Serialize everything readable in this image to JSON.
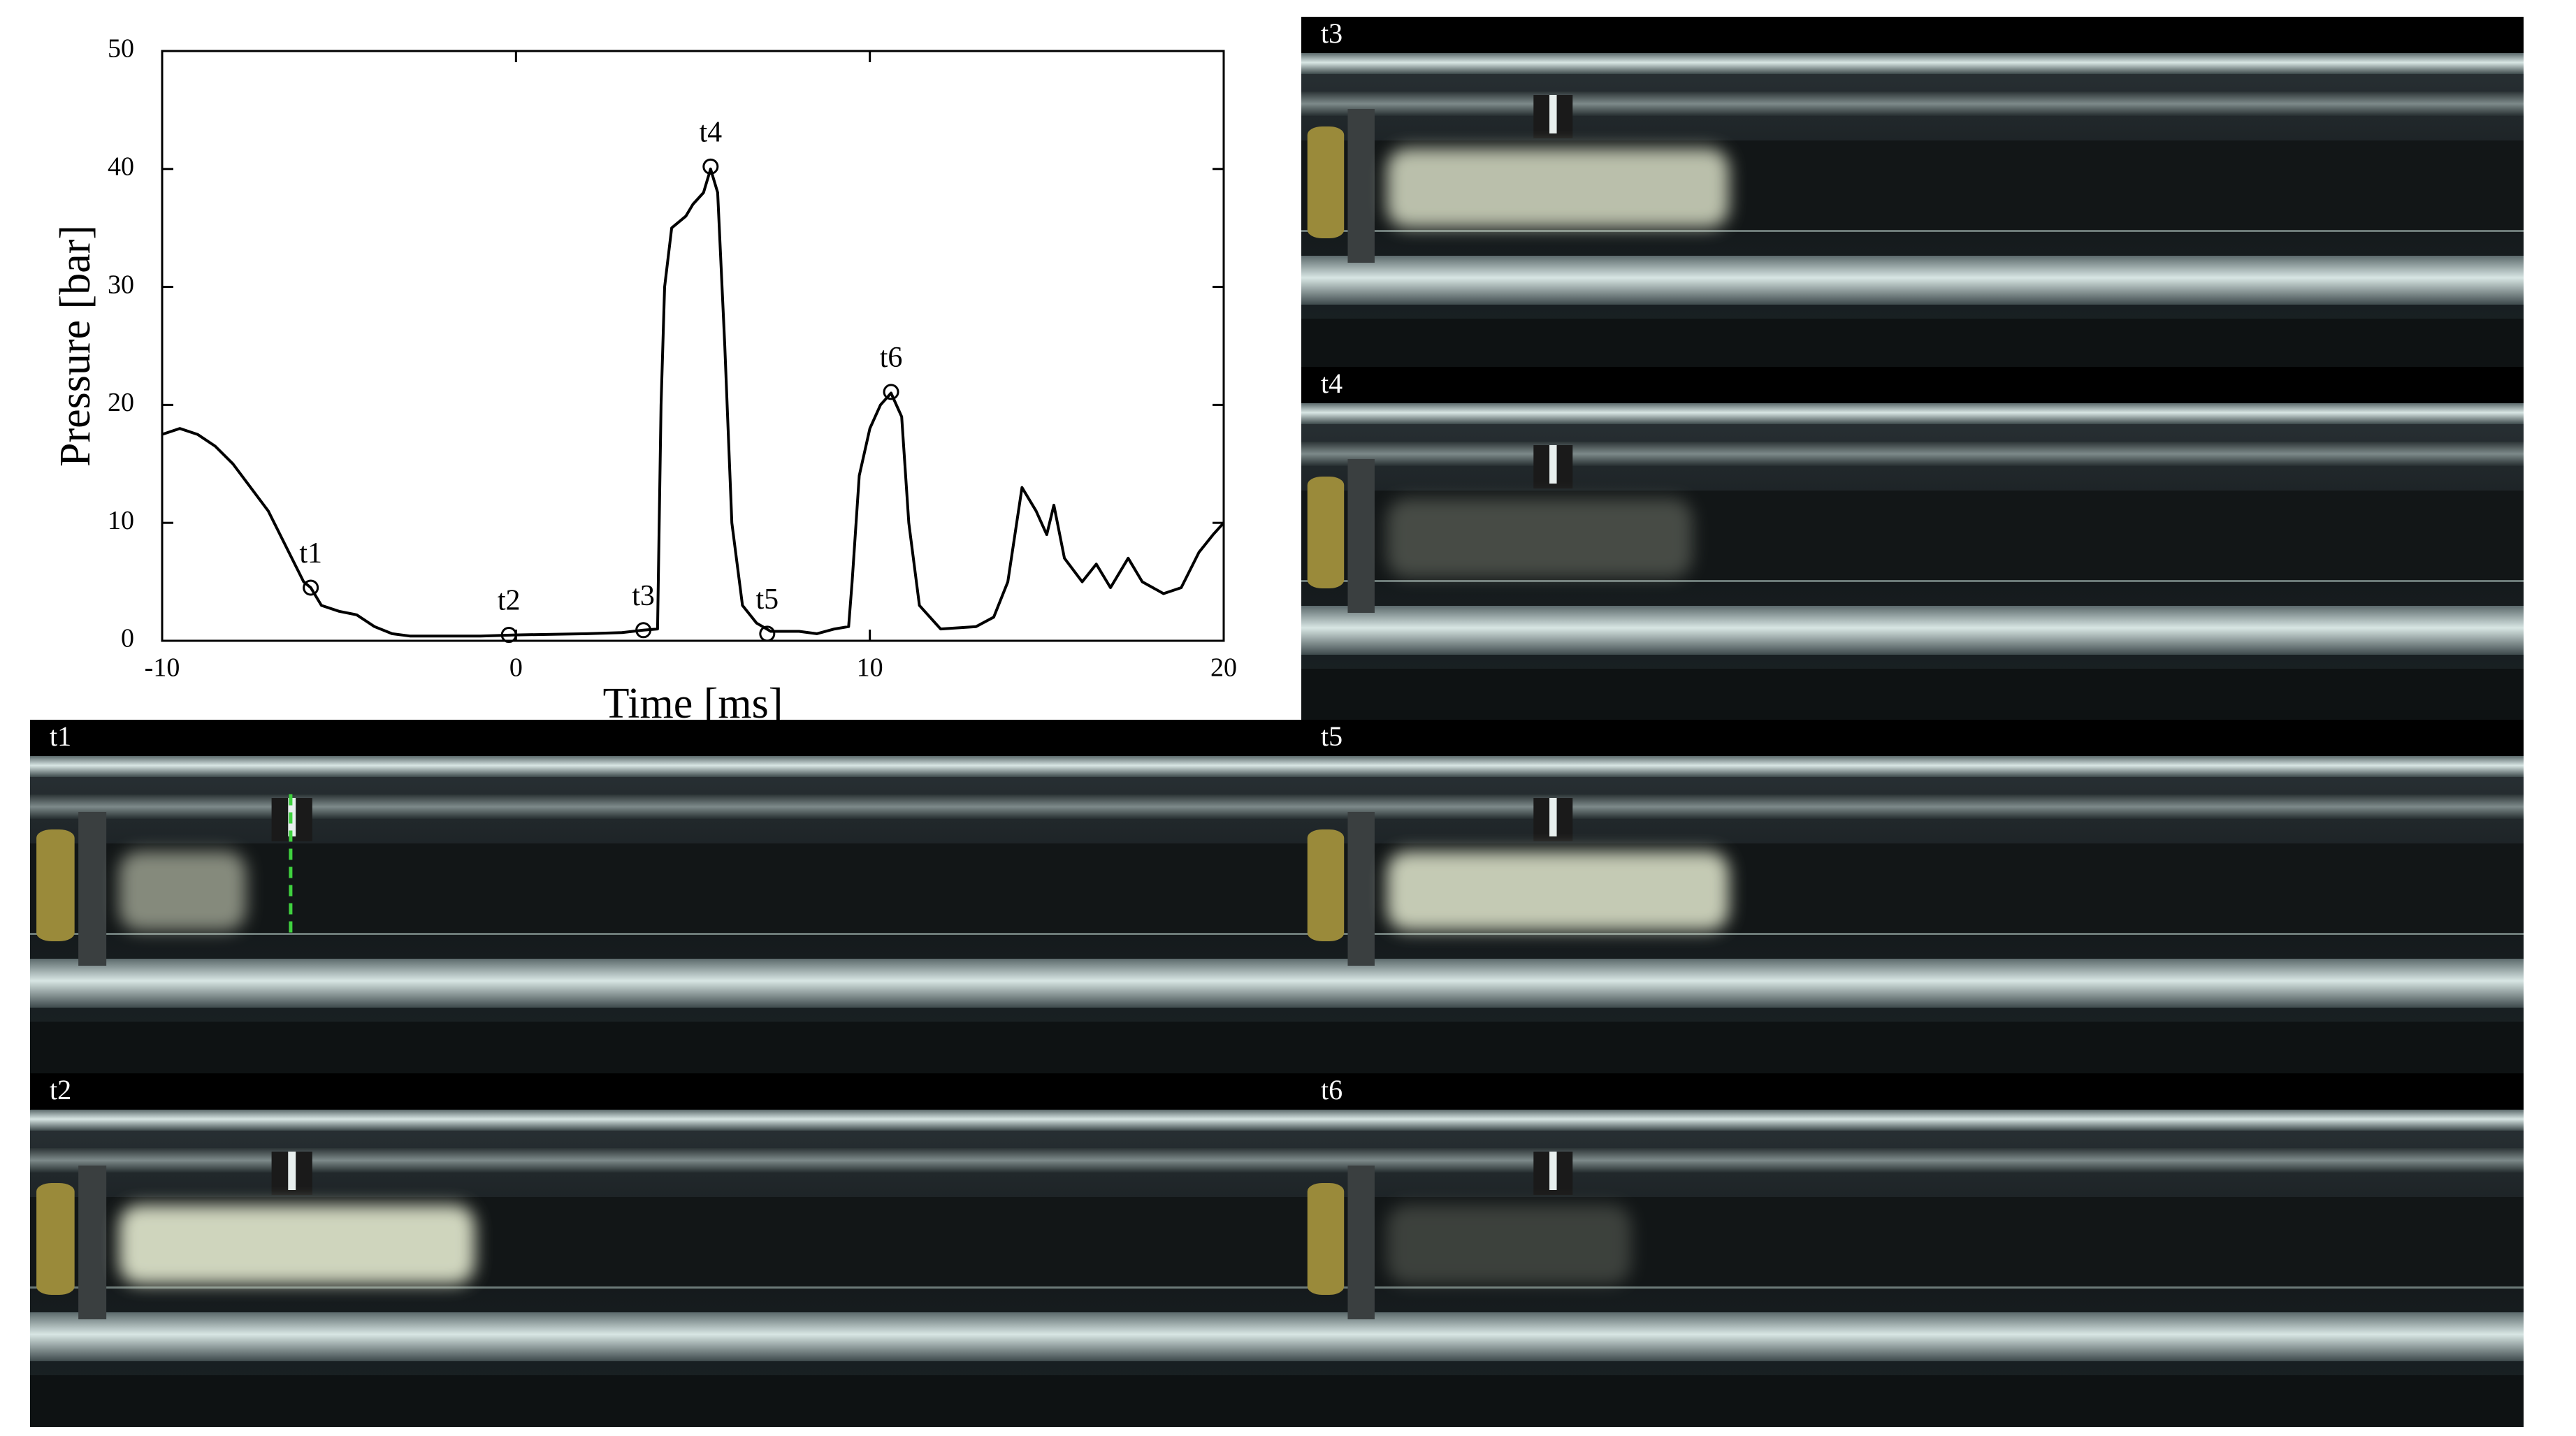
{
  "chart_data": {
    "type": "line",
    "x_label": "Time [ms]",
    "y_label": "Pressure [bar]",
    "x": [
      -10,
      -9.5,
      -9,
      -8.5,
      -8,
      -7.5,
      -7,
      -6.5,
      -6,
      -5.8,
      -5.5,
      -5,
      -4.5,
      -4,
      -3.5,
      -3,
      -1,
      0,
      2,
      3,
      3.6,
      4,
      4.1,
      4.2,
      4.4,
      4.8,
      5,
      5.3,
      5.5,
      5.7,
      5.9,
      6.1,
      6.4,
      6.8,
      7.2,
      8,
      8.5,
      9,
      9.4,
      9.5,
      9.7,
      10,
      10.3,
      10.6,
      10.9,
      11.1,
      11.4,
      12,
      13,
      13.5,
      13.9,
      14.3,
      14.7,
      15,
      15.2,
      15.5,
      16,
      16.4,
      16.8,
      17.3,
      17.7,
      18.3,
      18.8,
      19.3,
      19.7,
      20
    ],
    "values": [
      17.5,
      18,
      17.5,
      16.5,
      15,
      13,
      11,
      8,
      5,
      4.5,
      3,
      2.5,
      2.2,
      1.2,
      0.6,
      0.4,
      0.4,
      0.5,
      0.6,
      0.7,
      0.9,
      1,
      20,
      30,
      35,
      36,
      37,
      38,
      40,
      38,
      25,
      10,
      3,
      1.5,
      0.8,
      0.8,
      0.6,
      1,
      1.2,
      5,
      14,
      18,
      20,
      21,
      19,
      10,
      3,
      1,
      1.2,
      2,
      5,
      13,
      11,
      9,
      11.5,
      7,
      5,
      6.5,
      4.5,
      7,
      5,
      4,
      4.5,
      7.5,
      9,
      10
    ],
    "color": "#000000",
    "markers": [
      {
        "label": "t1",
        "x": -5.8,
        "y": 4.5
      },
      {
        "label": "t2",
        "x": -0.2,
        "y": 0.5
      },
      {
        "label": "t3",
        "x": 3.6,
        "y": 0.9
      },
      {
        "label": "t4",
        "x": 5.5,
        "y": 40.2
      },
      {
        "label": "t5",
        "x": 7.1,
        "y": 0.6
      },
      {
        "label": "t6",
        "x": 10.6,
        "y": 21.1
      }
    ],
    "xlim": [
      -10,
      20
    ],
    "xticks": [
      -10,
      0,
      10,
      20
    ],
    "ylim": [
      0,
      50
    ],
    "yticks": [
      0,
      10,
      20,
      30,
      40,
      50
    ],
    "grid": false
  },
  "panels": [
    {
      "label": "t3"
    },
    {
      "label": "t4"
    },
    {
      "label": "t5"
    },
    {
      "label": "t6"
    },
    {
      "label": "t1"
    },
    {
      "label": "t2"
    }
  ]
}
